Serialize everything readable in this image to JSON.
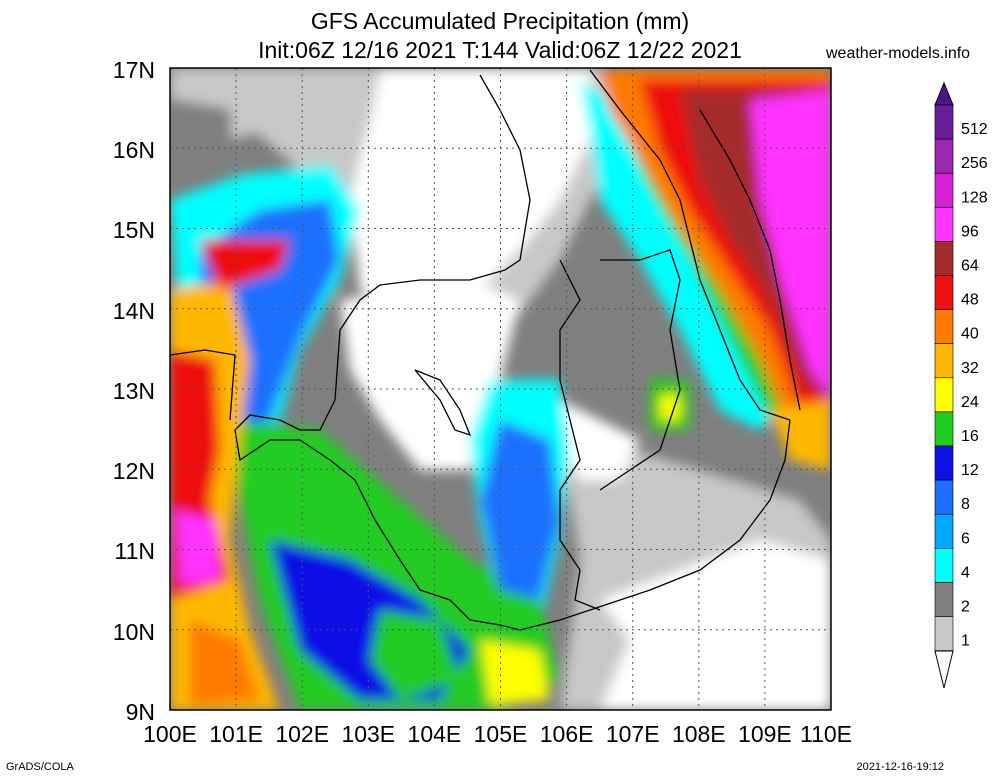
{
  "header": {
    "title": "GFS Accumulated Precipitation (mm)",
    "subtitle": "Init:06Z 12/16 2021 T:144 Valid:06Z 12/22 2021",
    "site": "weather-models.info"
  },
  "map": {
    "lat_labels": [
      "17N",
      "16N",
      "15N",
      "14N",
      "13N",
      "12N",
      "11N",
      "10N",
      "9N"
    ],
    "lon_labels": [
      "100E",
      "101E",
      "102E",
      "103E",
      "104E",
      "105E",
      "106E",
      "107E",
      "108E",
      "109E",
      "110E"
    ]
  },
  "colorbar": {
    "levels": [
      "512",
      "256",
      "128",
      "96",
      "64",
      "48",
      "40",
      "32",
      "24",
      "16",
      "12",
      "8",
      "6",
      "4",
      "2",
      "1"
    ],
    "colors": [
      "#6a1b9a",
      "#9c27b0",
      "#d61fd6",
      "#ff33ff",
      "#a52a2a",
      "#ee1111",
      "#ff7a00",
      "#ffb800",
      "#ffff00",
      "#22cc22",
      "#1010e6",
      "#1f6fff",
      "#00a6ff",
      "#00ffff",
      "#7f7f7f",
      "#c8c8c8"
    ]
  },
  "footer": {
    "credit": "GrADS/COLA",
    "timestamp": "2021-12-16-19:12"
  }
}
